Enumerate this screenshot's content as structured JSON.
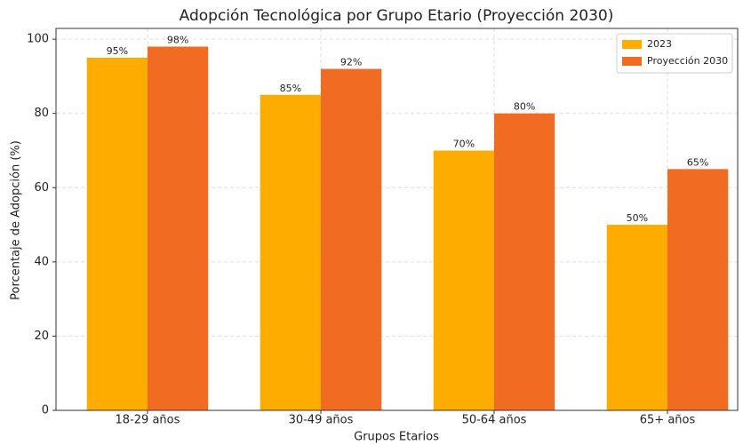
{
  "chart_data": {
    "type": "bar",
    "title": "Adopción Tecnológica por Grupo Etario (Proyección 2030)",
    "xlabel": "Grupos Etarios",
    "ylabel": "Porcentaje de Adopción (%)",
    "categories": [
      "18-29 años",
      "30-49 años",
      "50-64 años",
      "65+ años"
    ],
    "series": [
      {
        "name": "2023",
        "color": "#ffac00",
        "values": [
          95,
          85,
          70,
          50
        ],
        "value_labels": [
          "95%",
          "85%",
          "70%",
          "50%"
        ]
      },
      {
        "name": "Proyección 2030",
        "color": "#f26b22",
        "values": [
          98,
          92,
          80,
          65
        ],
        "value_labels": [
          "98%",
          "92%",
          "80%",
          "65%"
        ]
      }
    ],
    "ylim": [
      0,
      102.9
    ],
    "yticks": [
      0,
      20,
      40,
      60,
      80,
      100
    ],
    "grid": true,
    "legend": "upper right"
  }
}
